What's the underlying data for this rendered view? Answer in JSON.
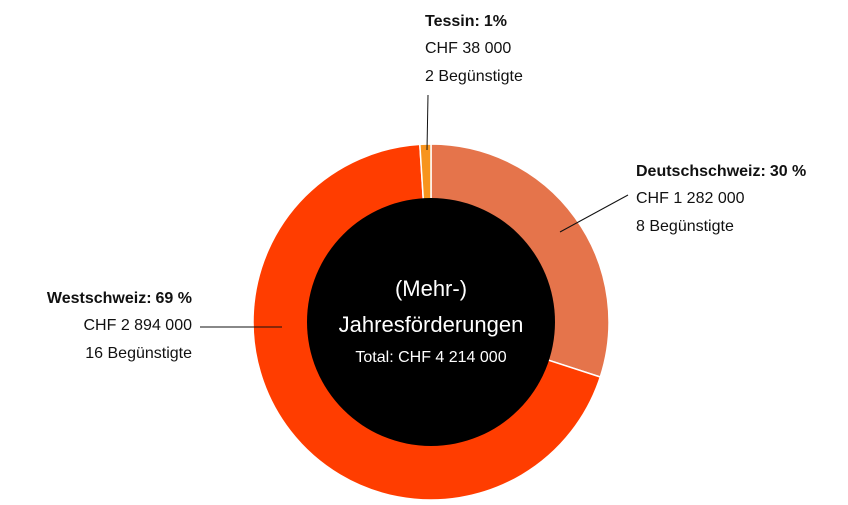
{
  "chart_data": {
    "type": "donut",
    "center_title": [
      "(Mehr-)",
      "Jahresförderungen"
    ],
    "center_total": "Total: CHF 4 214 000",
    "categories": [
      "Deutschschweiz:",
      "Westschweiz:",
      "Tessin:"
    ],
    "values": [
      30,
      69,
      1
    ],
    "value_labels": [
      "30 %",
      "69 %",
      "1%"
    ],
    "amount_labels": [
      "CHF 1 282 000",
      "CHF 2 894 000",
      "CHF 38 000"
    ],
    "beneficiary_labels": [
      "8 Begünstigte",
      "16 Begünstigte",
      "2 Begünstigte"
    ],
    "colors": [
      "#e5744b",
      "#ff3d00",
      "#f7941d"
    ]
  }
}
